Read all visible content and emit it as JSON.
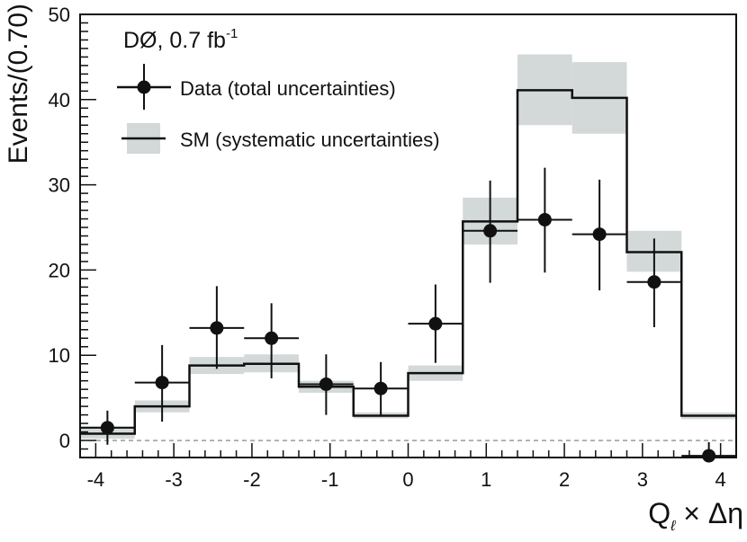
{
  "chart_data": {
    "type": "histogram",
    "experiment_label": "DØ, 0.7 fb",
    "experiment_label_sup": "-1",
    "xlabel_main": "Q",
    "xlabel_sub": "ℓ",
    "xlabel_rest": " × Δη",
    "ylabel": "Events/(0.70)",
    "xlim": [
      -4.2,
      4.2
    ],
    "ylim": [
      -2,
      50
    ],
    "x_ticks": [
      -4,
      -3,
      -2,
      -1,
      0,
      1,
      2,
      3,
      4
    ],
    "y_ticks": [
      0,
      10,
      20,
      30,
      40,
      50
    ],
    "bin_edges": [
      -4.2,
      -3.5,
      -2.8,
      -2.1,
      -1.4,
      -0.7,
      0.0,
      0.7,
      1.4,
      2.1,
      2.8,
      3.5,
      4.2
    ],
    "series": [
      {
        "name": "SM (systematic uncertainties)",
        "kind": "step",
        "values": [
          0.8,
          4.0,
          8.8,
          9.0,
          6.3,
          2.9,
          7.9,
          25.7,
          41.1,
          40.2,
          22.1,
          2.9
        ],
        "band_low": [
          0.2,
          3.3,
          7.8,
          8.0,
          5.6,
          2.6,
          7.0,
          23.0,
          37.0,
          36.0,
          19.8,
          2.5
        ],
        "band_high": [
          1.7,
          4.7,
          9.8,
          10.1,
          7.0,
          3.3,
          8.8,
          28.5,
          45.3,
          44.4,
          24.6,
          3.3
        ]
      },
      {
        "name": "Data (total uncertainties)",
        "kind": "points",
        "x": [
          -3.85,
          -3.15,
          -2.45,
          -1.75,
          -1.05,
          -0.35,
          0.35,
          1.05,
          1.75,
          2.45,
          3.15,
          3.85
        ],
        "values": [
          1.5,
          6.8,
          13.2,
          12.0,
          6.6,
          6.1,
          13.7,
          24.6,
          25.9,
          24.2,
          18.6,
          -1.8
        ],
        "err_low": [
          2.0,
          4.6,
          4.8,
          4.7,
          3.6,
          3.2,
          4.6,
          6.1,
          6.2,
          6.6,
          5.3,
          0.8
        ],
        "err_high": [
          2.0,
          4.4,
          4.9,
          4.1,
          3.5,
          3.1,
          4.6,
          5.9,
          6.1,
          6.4,
          5.1,
          1.6
        ]
      }
    ],
    "legend": {
      "placement": "top-left",
      "data_label": "Data (total uncertainties)",
      "sm_label": "SM (systematic uncertainties)"
    },
    "zero_line": true,
    "colors": {
      "band": "#d3d8d8",
      "line": "#111111",
      "zero_line": "#777777"
    }
  }
}
